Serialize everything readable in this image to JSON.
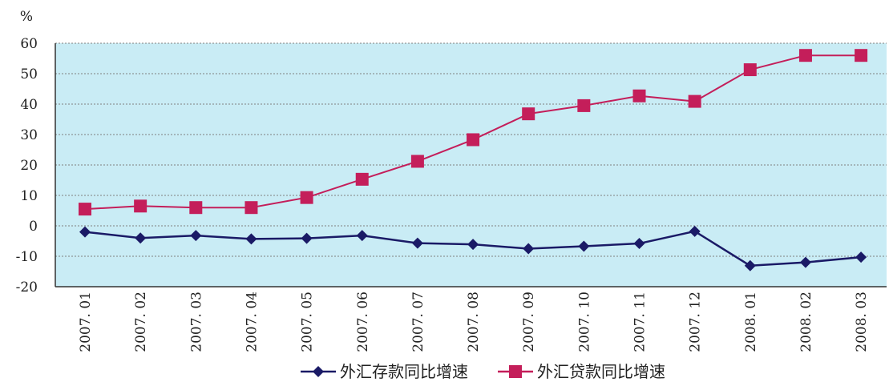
{
  "chart_data": {
    "type": "line",
    "ylabel": "%",
    "ylim": [
      -20,
      60
    ],
    "yticks": [
      60,
      50,
      40,
      30,
      20,
      10,
      0,
      -10,
      -20
    ],
    "grid": true,
    "legend_position": "bottom",
    "categories": [
      "2007. 01",
      "2007. 02",
      "2007. 03",
      "2007. 04",
      "2007. 05",
      "2007. 06",
      "2007. 07",
      "2007. 08",
      "2007. 09",
      "2007. 10",
      "2007. 11",
      "2007. 12",
      "2008. 01",
      "2008. 02",
      "2008. 03"
    ],
    "series": [
      {
        "name": "外汇存款同比增速",
        "marker": "diamond",
        "color": "#1a1a66",
        "values": [
          -2,
          -4,
          -3.2,
          -4.3,
          -4.1,
          -3.2,
          -5.7,
          -6.1,
          -7.5,
          -6.7,
          -5.8,
          -1.8,
          -13.1,
          -12,
          -10.3
        ]
      },
      {
        "name": "外汇贷款同比增速",
        "marker": "square",
        "color": "#c41e5a",
        "values": [
          5.5,
          6.5,
          6,
          6,
          9.3,
          15.3,
          21.2,
          28.3,
          36.8,
          39.5,
          42.7,
          40.9,
          51.3,
          56,
          56
        ]
      }
    ]
  },
  "colors": {
    "plot_background": "#c9ecf5",
    "grid": "#7f7f7f",
    "axis": "#333333"
  }
}
